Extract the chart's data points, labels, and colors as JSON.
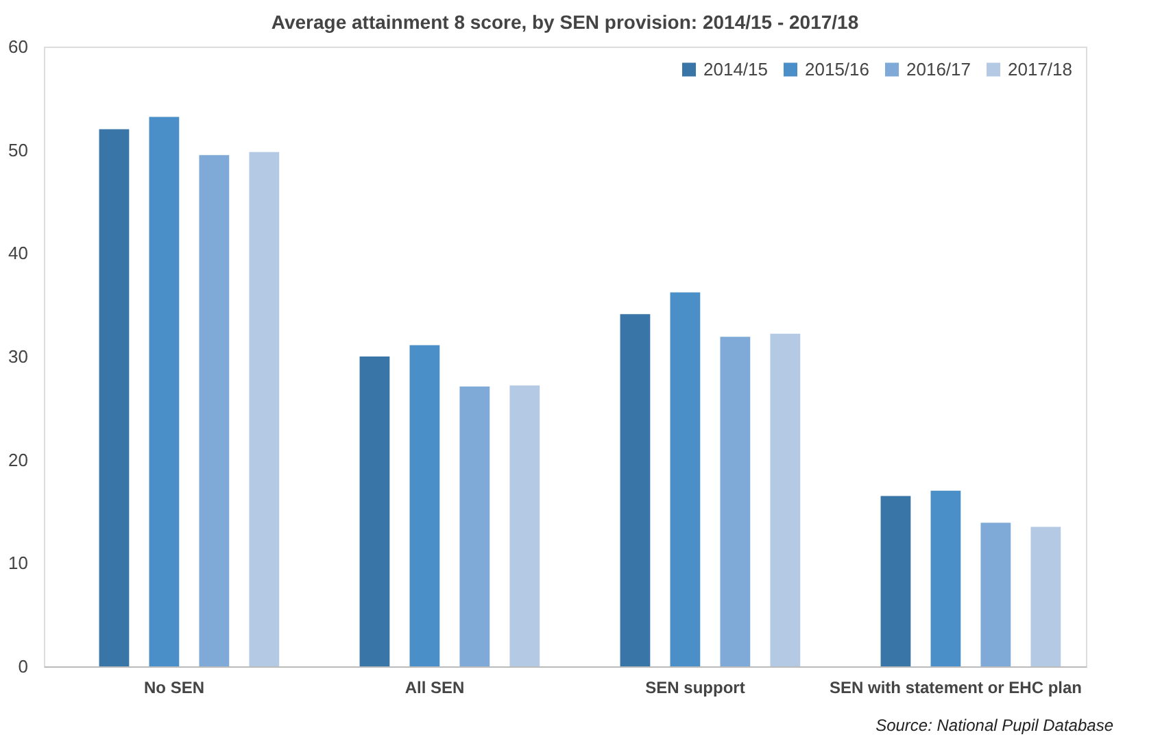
{
  "chart_data": {
    "type": "bar",
    "title": "Average attainment 8 score, by SEN provision: 2014/15 - 2017/18",
    "categories": [
      "No SEN",
      "All SEN",
      "SEN support",
      "SEN with statement or EHC plan"
    ],
    "series": [
      {
        "name": "2014/15",
        "color": "#3a75a8",
        "values": [
          52.0,
          30.0,
          34.1,
          16.5
        ]
      },
      {
        "name": "2015/16",
        "color": "#4a8fc8",
        "values": [
          53.2,
          31.1,
          36.2,
          17.0
        ]
      },
      {
        "name": "2016/17",
        "color": "#7faad8",
        "values": [
          49.5,
          27.1,
          31.9,
          13.9
        ]
      },
      {
        "name": "2017/18",
        "color": "#b4c9e4",
        "values": [
          49.8,
          27.2,
          32.2,
          13.5
        ]
      }
    ],
    "ylim": [
      0,
      60
    ],
    "yticks": [
      0,
      10,
      20,
      30,
      40,
      50,
      60
    ],
    "grid": false,
    "legend": "top right",
    "annotations": [
      "Source: National Pupil Database"
    ]
  }
}
